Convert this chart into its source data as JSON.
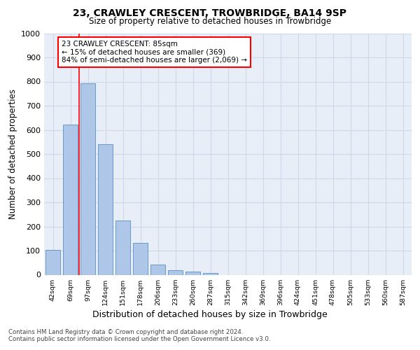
{
  "title1": "23, CRAWLEY CRESCENT, TROWBRIDGE, BA14 9SP",
  "title2": "Size of property relative to detached houses in Trowbridge",
  "xlabel": "Distribution of detached houses by size in Trowbridge",
  "ylabel": "Number of detached properties",
  "bar_labels": [
    "42sqm",
    "69sqm",
    "97sqm",
    "124sqm",
    "151sqm",
    "178sqm",
    "206sqm",
    "233sqm",
    "260sqm",
    "287sqm",
    "315sqm",
    "342sqm",
    "369sqm",
    "396sqm",
    "424sqm",
    "451sqm",
    "478sqm",
    "505sqm",
    "533sqm",
    "560sqm",
    "587sqm"
  ],
  "bar_values": [
    102,
    623,
    793,
    542,
    224,
    133,
    43,
    18,
    12,
    8,
    0,
    0,
    0,
    0,
    0,
    0,
    0,
    0,
    0,
    0,
    0
  ],
  "bar_color": "#aec6e8",
  "bar_edge_color": "#5a8fc2",
  "annotation_line1": "23 CRAWLEY CRESCENT: 85sqm",
  "annotation_line2": "← 15% of detached houses are smaller (369)",
  "annotation_line3": "84% of semi-detached houses are larger (2,069) →",
  "annotation_box_color": "white",
  "annotation_box_edge": "red",
  "redline_x": 1.5,
  "ylim": [
    0,
    1000
  ],
  "yticks": [
    0,
    100,
    200,
    300,
    400,
    500,
    600,
    700,
    800,
    900,
    1000
  ],
  "grid_color": "#d0d8e8",
  "bg_color": "#e8eef8",
  "footer_line1": "Contains HM Land Registry data © Crown copyright and database right 2024.",
  "footer_line2": "Contains public sector information licensed under the Open Government Licence v3.0.",
  "figure_bg": "#ffffff"
}
